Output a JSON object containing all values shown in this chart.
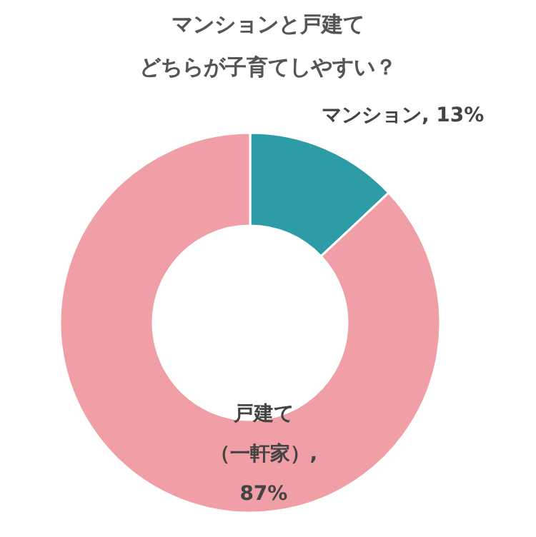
{
  "chart_data": {
    "type": "donut",
    "title": "マンションと戸建て",
    "subtitle": "どちらが子育てしやすい？",
    "categories": [
      "マンション",
      "戸建て（一軒家）"
    ],
    "values": [
      13,
      87
    ],
    "value_labels": [
      ", 13%",
      ", 87%"
    ],
    "colors": [
      "#2e9ca6",
      "#f09fa6"
    ]
  }
}
